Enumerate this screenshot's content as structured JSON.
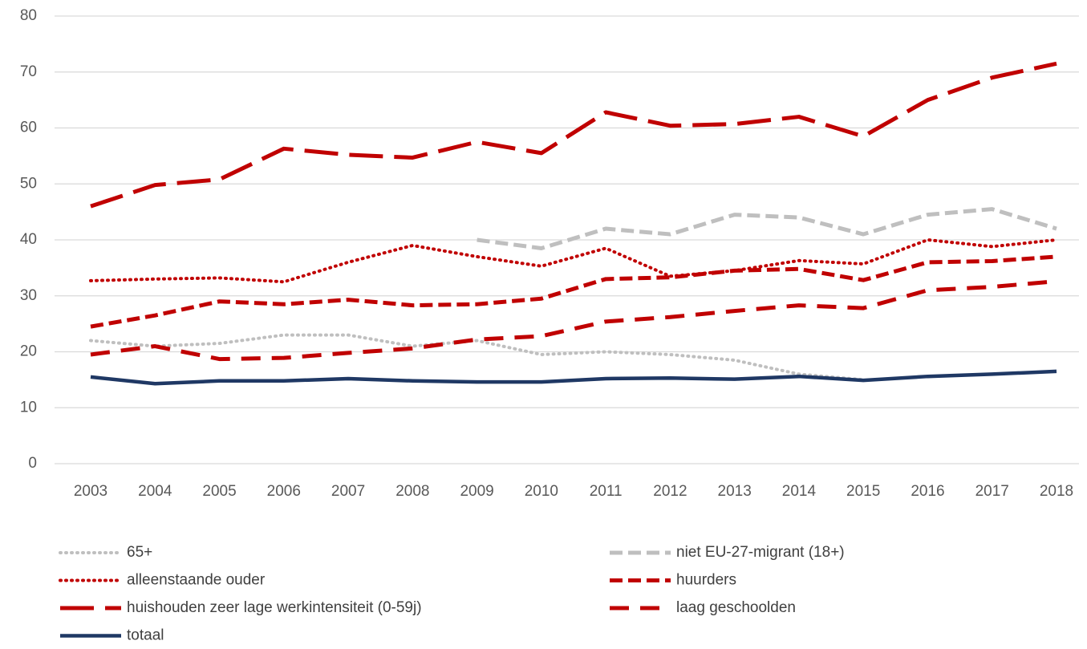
{
  "chart_data": {
    "type": "line",
    "x": [
      2003,
      2004,
      2005,
      2006,
      2007,
      2008,
      2009,
      2010,
      2011,
      2012,
      2013,
      2014,
      2015,
      2016,
      2017,
      2018
    ],
    "ylim": [
      0,
      80
    ],
    "yticks": [
      0,
      10,
      20,
      30,
      40,
      50,
      60,
      70,
      80
    ],
    "grid": true,
    "legend": "bottom",
    "series": [
      {
        "name": "65+",
        "color": "#bfbfbf",
        "style": "dotted",
        "values": [
          22,
          21,
          21.5,
          23,
          23,
          21,
          22,
          19.5,
          20,
          19.5,
          18.5,
          16,
          15,
          null,
          null,
          null
        ]
      },
      {
        "name": "niet EU-27-migrant (18+)",
        "color": "#bfbfbf",
        "style": "dashed",
        "values": [
          null,
          null,
          null,
          null,
          null,
          null,
          40,
          38.5,
          42,
          41,
          44.5,
          44,
          41,
          44.5,
          45.5,
          42
        ]
      },
      {
        "name": "alleenstaande ouder",
        "color": "#c00000",
        "style": "dotted",
        "values": [
          32.7,
          33,
          33.2,
          32.5,
          36,
          39,
          37,
          35.3,
          38.5,
          33.5,
          34.5,
          36.3,
          35.7,
          40,
          38.8,
          40
        ]
      },
      {
        "name": "huurders",
        "color": "#c00000",
        "style": "dashed",
        "values": [
          24.5,
          26.5,
          29,
          28.5,
          29.3,
          28.3,
          28.5,
          29.5,
          33,
          33.3,
          34.5,
          34.8,
          32.8,
          36,
          36.2,
          37
        ]
      },
      {
        "name": "huishouden zeer lage werkintensiteit (0-59j)",
        "color": "#c00000",
        "style": "long-dash",
        "values": [
          46,
          49.8,
          50.8,
          56.3,
          55.2,
          54.7,
          57.5,
          55.5,
          62.8,
          60.4,
          60.7,
          62,
          58.5,
          65,
          69,
          71.5
        ]
      },
      {
        "name": "laag geschoolden",
        "color": "#c00000",
        "style": "medium-dash",
        "values": [
          19.5,
          21,
          18.7,
          18.9,
          19.8,
          20.6,
          22.2,
          22.8,
          25.4,
          26.2,
          27.3,
          28.3,
          27.8,
          31,
          31.6,
          32.6
        ]
      },
      {
        "name": "totaal",
        "color": "#1f3864",
        "style": "solid",
        "values": [
          15.5,
          14.3,
          14.8,
          14.8,
          15.2,
          14.8,
          14.6,
          14.6,
          15.2,
          15.3,
          15.1,
          15.6,
          14.9,
          15.6,
          16,
          16.5
        ]
      }
    ]
  }
}
